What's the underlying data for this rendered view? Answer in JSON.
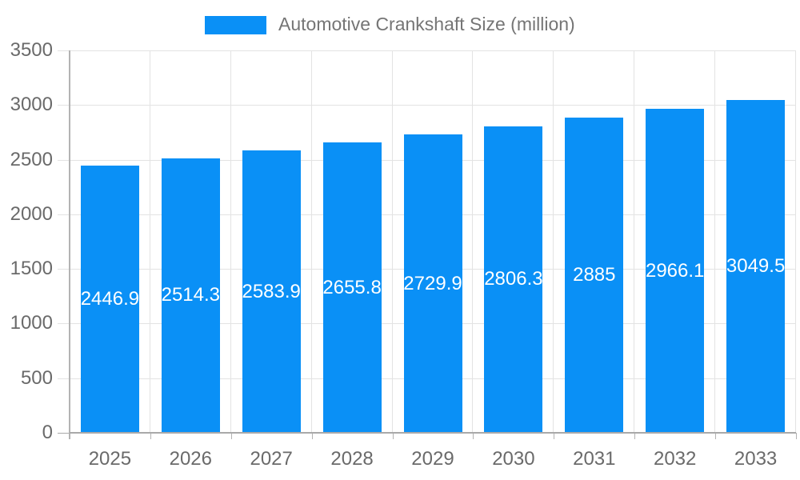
{
  "chart_data": {
    "type": "bar",
    "title": "Automotive Crankshaft Size (million)",
    "categories": [
      "2025",
      "2026",
      "2027",
      "2028",
      "2029",
      "2030",
      "2031",
      "2032",
      "2033"
    ],
    "series": [
      {
        "name": "Automotive Crankshaft Size (million)",
        "values": [
          2446.9,
          2514.3,
          2583.9,
          2655.8,
          2729.9,
          2806.3,
          2885,
          2966.1,
          3049.5
        ]
      }
    ],
    "value_labels": [
      "2446.9",
      "2514.3",
      "2583.9",
      "2655.8",
      "2729.9",
      "2806.3",
      "2885",
      "2966.1",
      "3049.5"
    ],
    "xlabel": "",
    "ylabel": "",
    "ylim": [
      0,
      3500
    ],
    "y_ticks": [
      0,
      500,
      1000,
      1500,
      2000,
      2500,
      3000,
      3500
    ],
    "grid": true,
    "legend_position": "top",
    "value_labels_inside_bars": true,
    "colors": {
      "bar": "#0a90f6",
      "grid_line": "#e3e3e3",
      "axis_line": "#b3b3b3",
      "baseline": "#a9a9a9",
      "tick_label": "#6a6a6a",
      "legend_text": "#757575",
      "value_label_text": "#ffffff",
      "background": "#ffffff"
    }
  }
}
